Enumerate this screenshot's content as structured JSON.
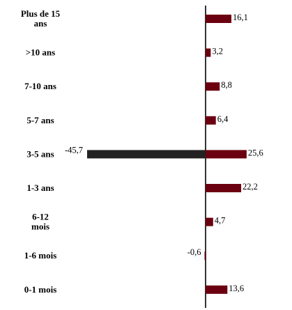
{
  "chart_data": {
    "type": "bar",
    "orientation": "horizontal",
    "categories": [
      "Plus de 15 ans",
      ">10 ans",
      "7-10 ans",
      "5-7 ans",
      "3-5 ans",
      "1-3 ans",
      "6-12 mois",
      "1-6 mois",
      "0-1 mois"
    ],
    "category_lines": [
      [
        "Plus de 15",
        "ans"
      ],
      [
        ">10 ans"
      ],
      [
        "7-10 ans"
      ],
      [
        "5-7 ans"
      ],
      [
        "3-5 ans"
      ],
      [
        "1-3 ans"
      ],
      [
        "6-12",
        "mois"
      ],
      [
        "1-6 mois"
      ],
      [
        "0-1 mois"
      ]
    ],
    "values": [
      16.1,
      3.2,
      8.8,
      6.4,
      25.6,
      22.2,
      4.7,
      -0.6,
      13.6
    ],
    "value_labels": [
      "16,1",
      "3,2",
      "8,8",
      "6,4",
      "25,6",
      "22,2",
      "4,7",
      "-0,6",
      "13,6"
    ],
    "series": [
      {
        "values": [
          16.1,
          3.2,
          8.8,
          6.4,
          25.6,
          22.2,
          4.7,
          -0.6,
          13.6
        ]
      },
      {
        "values": [
          null,
          null,
          null,
          null,
          -45.7,
          null,
          null,
          null,
          null
        ],
        "value_labels": [
          null,
          null,
          null,
          null,
          "-45,7",
          null,
          null,
          null,
          null
        ]
      }
    ],
    "colors": {
      "positive": "#6b0010",
      "negative_highlight": "#222222",
      "axis": "#000000"
    },
    "title": "",
    "xlabel": "",
    "ylabel": "",
    "grid": false,
    "legend": "none"
  }
}
